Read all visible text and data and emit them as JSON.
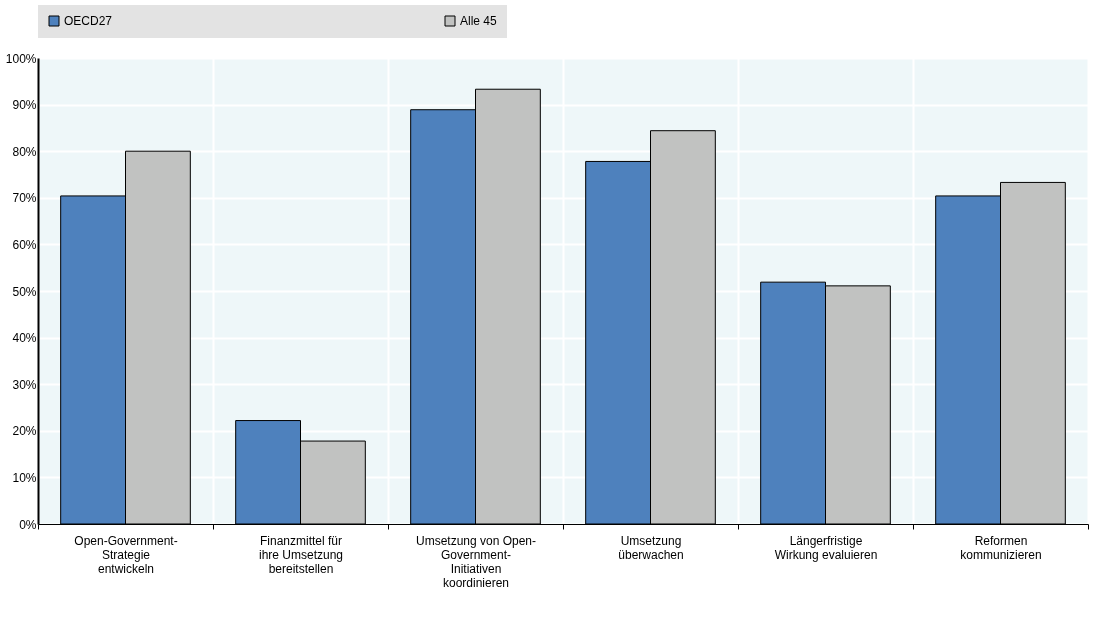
{
  "chart_data": {
    "type": "bar",
    "categories": [
      "Open-Government-Strategie entwickeln",
      "Finanzmittel für ihre Umsetzung bereitstellen",
      "Umsetzung von Open-Government-Initiativen koordinieren",
      "Umsetzung überwachen",
      "Längerfristige Wirkung evaluieren",
      "Reformen kommunizieren"
    ],
    "series": [
      {
        "name": "OECD27",
        "color": "#4e81bd",
        "values": [
          70.4,
          22.2,
          88.9,
          77.8,
          51.9,
          70.4
        ]
      },
      {
        "name": "Alle 45",
        "color": "#c1c2c1",
        "values": [
          80.0,
          17.8,
          93.3,
          84.4,
          51.1,
          73.3
        ]
      }
    ],
    "ylim": [
      0,
      100
    ],
    "yticks": [
      {
        "value": 0,
        "label": "0%"
      },
      {
        "value": 10,
        "label": "10%"
      },
      {
        "value": 20,
        "label": "20%"
      },
      {
        "value": 30,
        "label": "30%"
      },
      {
        "value": 40,
        "label": "40%"
      },
      {
        "value": 50,
        "label": "50%"
      },
      {
        "value": 60,
        "label": "60%"
      },
      {
        "value": 70,
        "label": "70%"
      },
      {
        "value": 80,
        "label": "80%"
      },
      {
        "value": 90,
        "label": "90%"
      },
      {
        "value": 100,
        "label": "100%"
      }
    ],
    "grid": true,
    "legend": "top"
  }
}
